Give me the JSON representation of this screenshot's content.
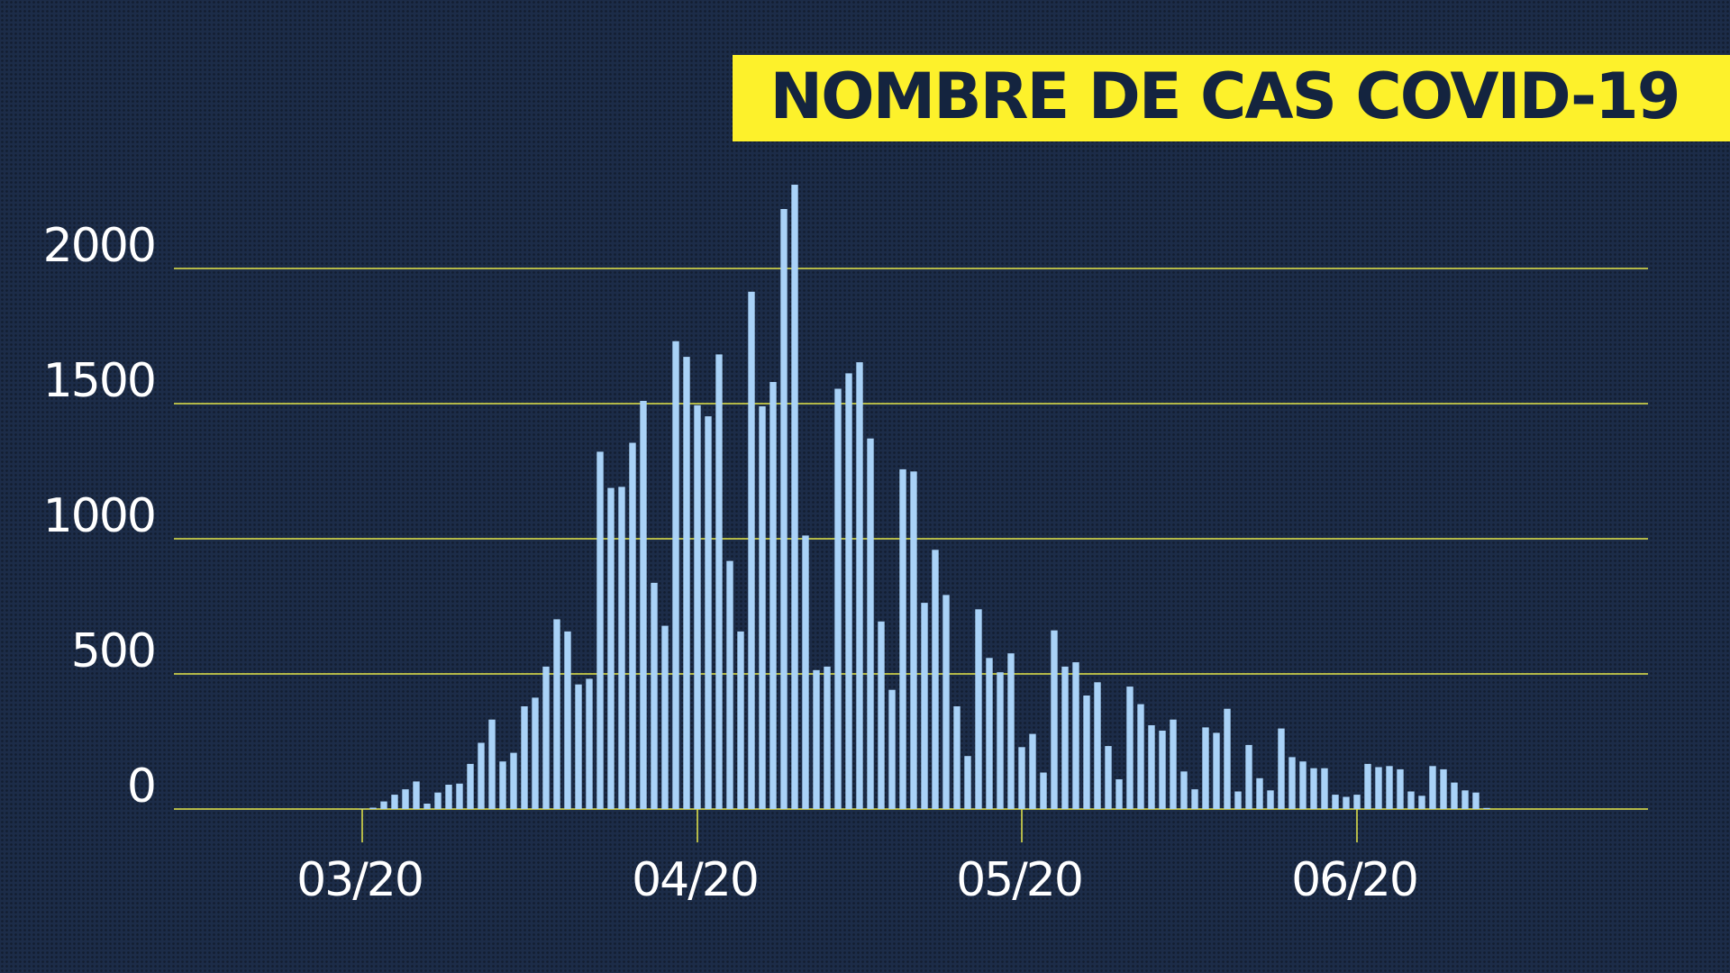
{
  "chart_data": {
    "type": "bar",
    "title": "NOMBRE DE CAS COVID-19",
    "categories": [
      "03/20",
      null,
      null,
      null,
      null,
      null,
      null,
      null,
      null,
      null,
      null,
      null,
      null,
      null,
      null,
      null,
      null,
      null,
      null,
      null,
      null,
      null,
      null,
      null,
      null,
      null,
      null,
      null,
      null,
      null,
      null,
      "04/20",
      null,
      null,
      null,
      null,
      null,
      null,
      null,
      null,
      null,
      null,
      null,
      null,
      null,
      null,
      null,
      null,
      null,
      null,
      null,
      null,
      null,
      null,
      null,
      null,
      null,
      null,
      null,
      null,
      null,
      "05/20",
      null,
      null,
      null,
      null,
      null,
      null,
      null,
      null,
      null,
      null,
      null,
      null,
      null,
      null,
      null,
      null,
      null,
      null,
      null,
      null,
      null,
      null,
      null,
      null,
      null,
      null,
      null,
      null,
      null,
      null,
      "06/20",
      null,
      null,
      null,
      null,
      null,
      null,
      null,
      null,
      null,
      null,
      null,
      null
    ],
    "values": [
      1,
      5,
      28,
      53,
      73,
      102,
      20,
      61,
      90,
      94,
      167,
      245,
      331,
      176,
      208,
      380,
      412,
      527,
      702,
      657,
      461,
      482,
      1322,
      1188,
      1192,
      1355,
      1510,
      837,
      678,
      1731,
      1673,
      1494,
      1453,
      1682,
      918,
      657,
      1914,
      1490,
      1580,
      2220,
      2310,
      1012,
      514,
      527,
      1555,
      1612,
      1653,
      1371,
      694,
      441,
      1257,
      1249,
      763,
      959,
      792,
      380,
      196,
      739,
      559,
      506,
      576,
      229,
      278,
      135,
      661,
      527,
      543,
      420,
      469,
      233,
      110,
      453,
      388,
      310,
      290,
      331,
      139,
      73,
      302,
      282,
      371,
      65,
      237,
      114,
      69,
      298,
      192,
      176,
      151,
      151,
      53,
      45,
      53,
      167,
      155,
      159,
      147,
      65,
      49,
      159,
      147,
      98,
      69,
      61,
      4
    ],
    "color": "#a9d2f7",
    "grid_color": "#e6e84a",
    "ylim": [
      0,
      2400
    ],
    "yticks": [
      0,
      500,
      1000,
      1500,
      2000
    ],
    "grid": true
  }
}
